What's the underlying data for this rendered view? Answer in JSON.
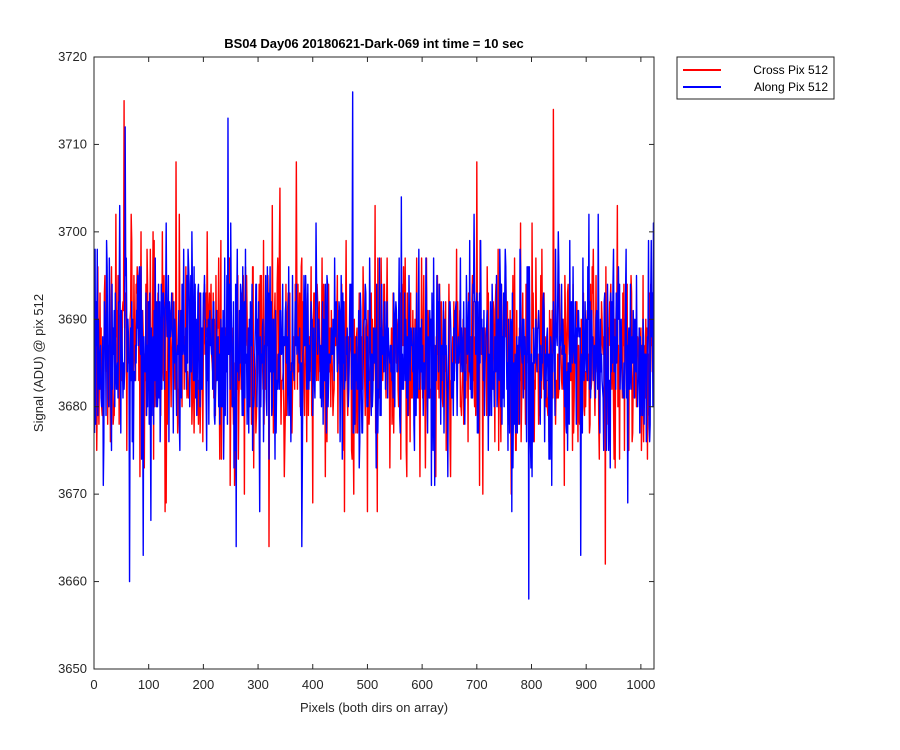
{
  "chart_data": {
    "type": "line",
    "title": "BS04 Day06 20180621-Dark-069 int time = 10 sec",
    "xlabel": "Pixels (both dirs on array)",
    "ylabel": "Signal (ADU) @ pix 512",
    "xlim": [
      0,
      1024
    ],
    "ylim": [
      3650,
      3720
    ],
    "xticks": [
      0,
      100,
      200,
      300,
      400,
      500,
      600,
      700,
      800,
      900,
      1000
    ],
    "yticks": [
      3650,
      3660,
      3670,
      3680,
      3690,
      3700,
      3710,
      3720
    ],
    "grid": true,
    "legend_position": "outside-top-right",
    "series": [
      {
        "name": "Cross Pix 512",
        "color": "#ff0000",
        "x_range": [
          1,
          1024
        ],
        "mean": 3686,
        "spread_typical": 6,
        "noise_seed": 17,
        "notable_points": [
          [
            55,
            3715
          ],
          [
            150,
            3708
          ],
          [
            340,
            3705
          ],
          [
            370,
            3708
          ],
          [
            500,
            3668
          ],
          [
            700,
            3708
          ],
          [
            840,
            3714
          ],
          [
            935,
            3662
          ],
          [
            130,
            3668
          ],
          [
            320,
            3664
          ]
        ]
      },
      {
        "name": "Along Pix 512",
        "color": "#0000ff",
        "x_range": [
          1,
          1024
        ],
        "mean": 3686,
        "spread_typical": 6,
        "noise_seed": 91,
        "notable_points": [
          [
            57,
            3712
          ],
          [
            245,
            3713
          ],
          [
            473,
            3716
          ],
          [
            65,
            3660
          ],
          [
            90,
            3663
          ],
          [
            260,
            3664
          ],
          [
            795,
            3658
          ],
          [
            890,
            3663
          ],
          [
            380,
            3664
          ]
        ]
      }
    ]
  }
}
